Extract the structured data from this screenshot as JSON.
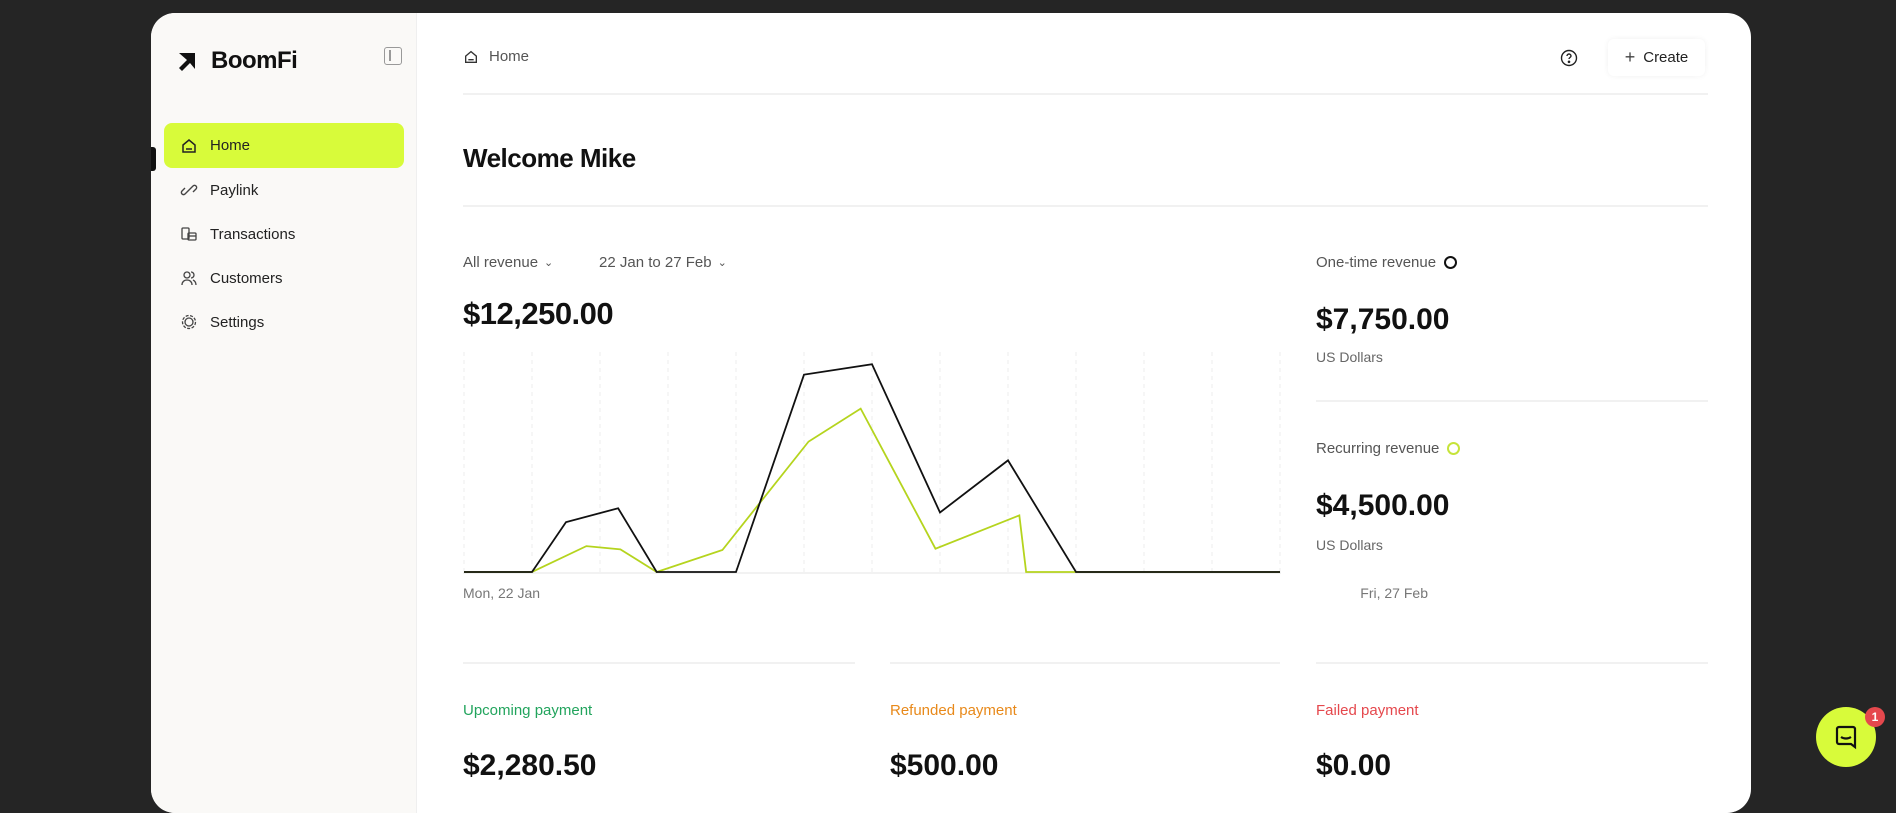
{
  "app": {
    "name": "BoomFi"
  },
  "sidebar": {
    "items": [
      {
        "label": "Home",
        "icon": "home-icon",
        "active": true
      },
      {
        "label": "Paylink",
        "icon": "link-icon"
      },
      {
        "label": "Transactions",
        "icon": "transactions-icon"
      },
      {
        "label": "Customers",
        "icon": "users-icon"
      },
      {
        "label": "Settings",
        "icon": "gear-icon"
      }
    ]
  },
  "header": {
    "breadcrumb": "Home",
    "create_label": "Create"
  },
  "main": {
    "welcome": "Welcome Mike",
    "filter_revenue": "All revenue",
    "filter_date": "22 Jan to 27 Feb",
    "total": "$12,250.00"
  },
  "summary": {
    "one_time": {
      "label": "One-time revenue",
      "value": "$7,750.00",
      "currency": "US Dollars"
    },
    "recurring": {
      "label": "Recurring revenue",
      "value": "$4,500.00",
      "currency": "US Dollars"
    }
  },
  "cards": [
    {
      "label": "Upcoming payment",
      "value": "$2,280.50",
      "color": "#22a45d"
    },
    {
      "label": "Refunded payment",
      "value": "$500.00",
      "color": "#e8891a"
    },
    {
      "label": "Failed payment",
      "value": "$0.00",
      "color": "#e5484d"
    }
  ],
  "chat": {
    "badge": "1"
  },
  "colors": {
    "accent": "#d8fb3a",
    "one_time": "#111111",
    "recurring": "#b5d41e"
  },
  "chart_data": {
    "type": "line",
    "xlabel_start": "Mon, 22 Jan",
    "xlabel_end": "Fri, 27 Feb",
    "xlim": [
      0,
      36
    ],
    "ylim": [
      0,
      680
    ],
    "grid_lines": 12,
    "series": [
      {
        "name": "One-time revenue",
        "color": "#111111",
        "x": [
          0,
          3,
          4.5,
          6.8,
          8.5,
          12,
          15,
          18,
          21,
          24,
          27,
          36
        ],
        "y": [
          0,
          0,
          154,
          197,
          0,
          0,
          610,
          642,
          184,
          345,
          0,
          0
        ]
      },
      {
        "name": "Recurring revenue",
        "color": "#b5d41e",
        "x": [
          0,
          3,
          5.4,
          6.9,
          8.5,
          11.4,
          15.2,
          17.5,
          20.8,
          24.5,
          24.8,
          36
        ],
        "y": [
          0,
          0,
          80,
          70,
          0,
          68,
          403,
          505,
          72,
          175,
          0,
          0
        ]
      }
    ]
  }
}
